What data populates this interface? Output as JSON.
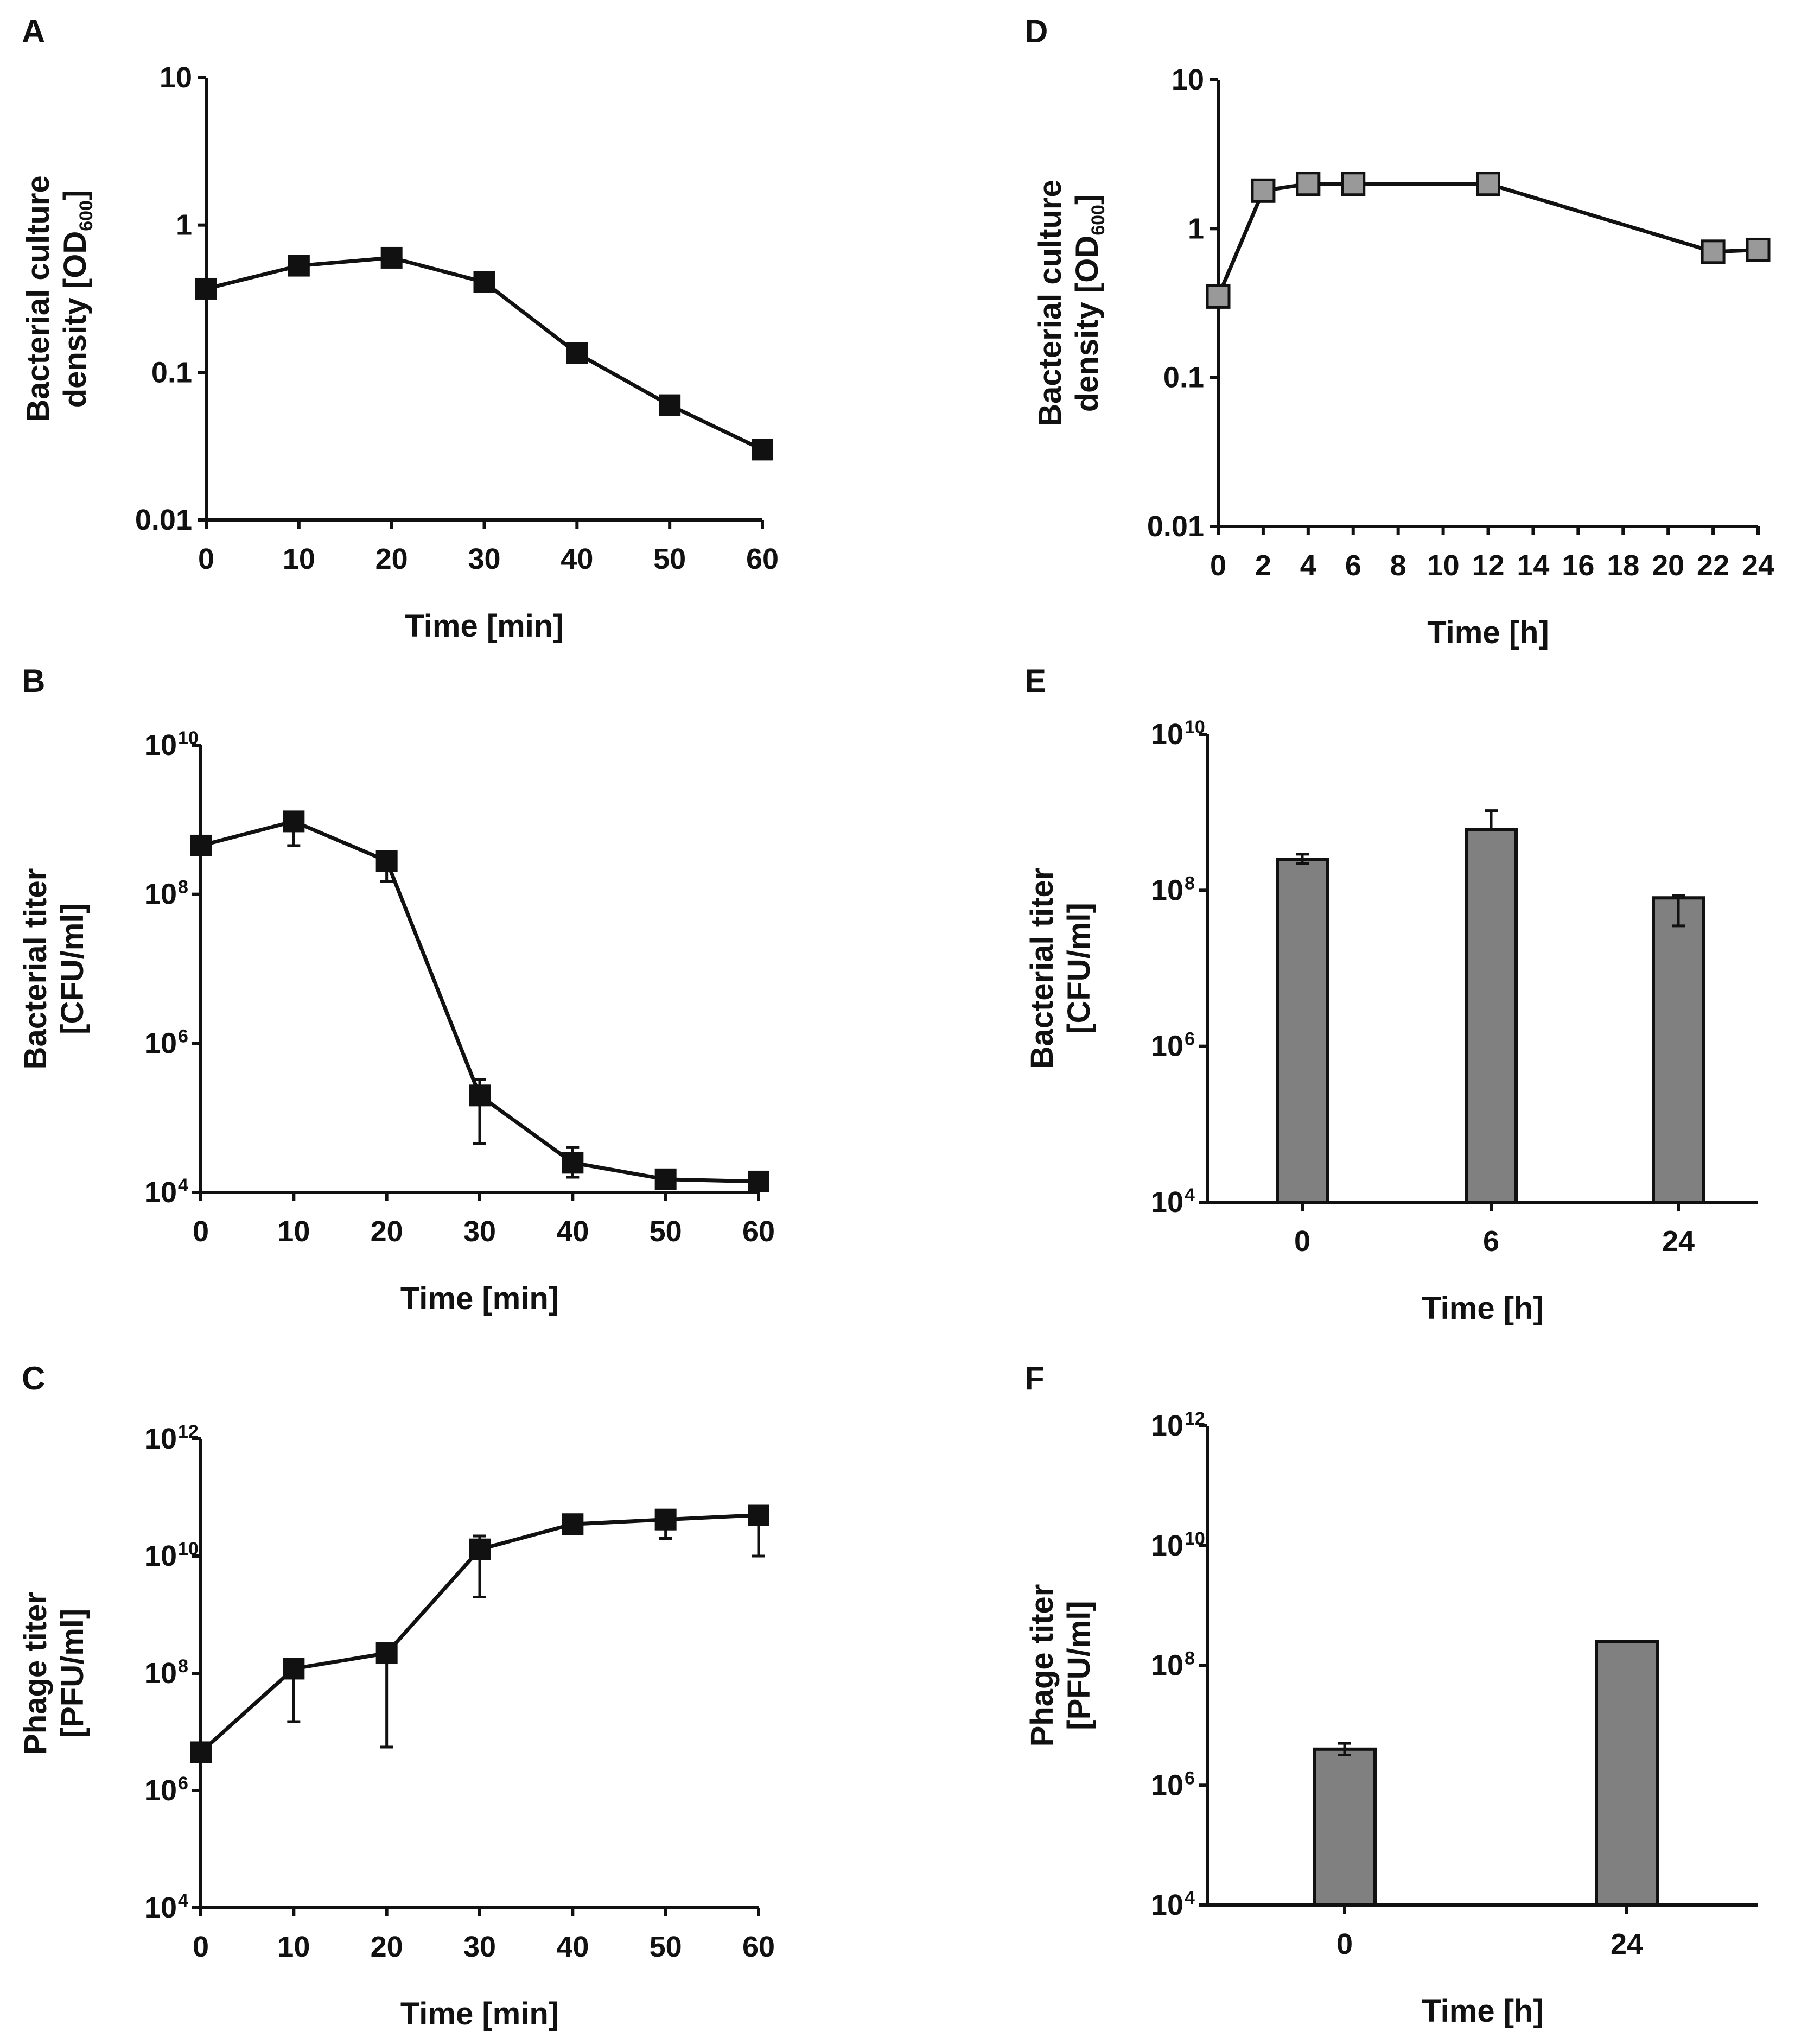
{
  "figure": {
    "panels": [
      "A",
      "B",
      "C",
      "D",
      "E",
      "F"
    ]
  },
  "colors": {
    "dark": "#111111",
    "gray_marker": "#999999",
    "gray_bar": "#808080"
  },
  "chart_data": [
    {
      "id": "A",
      "type": "line",
      "scale": "log",
      "x": [
        0,
        10,
        20,
        30,
        40,
        50,
        60
      ],
      "values": [
        0.37,
        0.53,
        0.6,
        0.41,
        0.135,
        0.06,
        0.03
      ],
      "xlabel": "Time [min]",
      "ylabel_line1": "Bacterial culture",
      "ylabel_line2": "density [OD",
      "ylabel_sub": "600",
      "ylabel_end": "]",
      "xticks": [
        "0",
        "10",
        "20",
        "30",
        "40",
        "50",
        "60"
      ],
      "yticks": [
        "0.01",
        "0.1",
        "1",
        "10"
      ],
      "ylim": [
        0.01,
        10
      ],
      "xlim": [
        0,
        60
      ],
      "marker": "dark-square"
    },
    {
      "id": "B",
      "type": "line",
      "scale": "log",
      "x": [
        0,
        10,
        20,
        30,
        40,
        50,
        60
      ],
      "values": [
        450000000.0,
        950000000.0,
        280000000.0,
        200000.0,
        25000.0,
        15000.0,
        14000.0
      ],
      "err_up": [
        550000000.0,
        1000000000.0,
        320000000.0,
        330000.0,
        40000.0,
        17000.0,
        15000.0
      ],
      "err_down": [
        400000000.0,
        450000000.0,
        150000000.0,
        45000.0,
        16000.0,
        12000.0,
        13000.0
      ],
      "xlabel": "Time [min]",
      "ylabel_line1": "Bacterial titer",
      "ylabel_line2": "[CFU/ml]",
      "xticks": [
        "0",
        "10",
        "20",
        "30",
        "40",
        "50",
        "60"
      ],
      "yticks": [
        {
          "base": "10",
          "exp": "4"
        },
        {
          "base": "10",
          "exp": "6"
        },
        {
          "base": "10",
          "exp": "8"
        },
        {
          "base": "10",
          "exp": "10"
        }
      ],
      "ylim": [
        10000.0,
        10000000000.0
      ],
      "xlim": [
        0,
        60
      ],
      "marker": "dark-square"
    },
    {
      "id": "C",
      "type": "line",
      "scale": "log",
      "x": [
        0,
        10,
        20,
        30,
        40,
        50,
        60
      ],
      "values": [
        4500000.0,
        120000000.0,
        220000000.0,
        13000000000.0,
        35000000000.0,
        42000000000.0,
        50000000000.0
      ],
      "err_up": [
        4600000.0,
        140000000.0,
        240000000.0,
        22000000000.0,
        37000000000.0,
        46000000000.0,
        55000000000.0
      ],
      "err_down": [
        4400000.0,
        15000000.0,
        5500000.0,
        2000000000.0,
        34000000000.0,
        20000000000.0,
        10000000000.0
      ],
      "xlabel": "Time [min]",
      "ylabel_line1": "Phage titer",
      "ylabel_line2": "[PFU/ml]",
      "xticks": [
        "0",
        "10",
        "20",
        "30",
        "40",
        "50",
        "60"
      ],
      "yticks": [
        {
          "base": "10",
          "exp": "4"
        },
        {
          "base": "10",
          "exp": "6"
        },
        {
          "base": "10",
          "exp": "8"
        },
        {
          "base": "10",
          "exp": "10"
        },
        {
          "base": "10",
          "exp": "12"
        }
      ],
      "ylim": [
        10000.0,
        1000000000000.0
      ],
      "xlim": [
        0,
        60
      ],
      "marker": "dark-square"
    },
    {
      "id": "D",
      "type": "line",
      "scale": "log",
      "x": [
        0,
        2,
        4,
        6,
        12,
        22,
        24
      ],
      "values": [
        0.35,
        1.8,
        2.0,
        2.0,
        2.0,
        0.7,
        0.72
      ],
      "xlabel": "Time [h]",
      "ylabel_line1": "Bacterial culture",
      "ylabel_line2": "density [OD",
      "ylabel_sub": "600",
      "ylabel_end": "]",
      "xticks": [
        "0",
        "2",
        "4",
        "6",
        "8",
        "10",
        "12",
        "14",
        "16",
        "18",
        "20",
        "22",
        "24"
      ],
      "yticks": [
        "0.01",
        "0.1",
        "1",
        "10"
      ],
      "ylim": [
        0.01,
        10
      ],
      "xlim": [
        0,
        24
      ],
      "marker": "gray-square"
    },
    {
      "id": "E",
      "type": "bar",
      "scale": "log",
      "categories": [
        "0",
        "6",
        "24"
      ],
      "values": [
        250000000.0,
        600000000.0,
        80000000.0
      ],
      "err_up": [
        290000000.0,
        1050000000.0,
        85000000.0
      ],
      "err_down": [
        220000000.0,
        600000000.0,
        35000000.0
      ],
      "xlabel": "Time [h]",
      "ylabel_line1": "Bacterial titer",
      "ylabel_line2": "[CFU/ml]",
      "yticks": [
        {
          "base": "10",
          "exp": "4"
        },
        {
          "base": "10",
          "exp": "6"
        },
        {
          "base": "10",
          "exp": "8"
        },
        {
          "base": "10",
          "exp": "10"
        }
      ],
      "ylim": [
        10000.0,
        10000000000.0
      ]
    },
    {
      "id": "F",
      "type": "bar",
      "scale": "log",
      "categories": [
        "0",
        "24"
      ],
      "values": [
        4000000.0,
        250000000.0
      ],
      "err_up": [
        5000000.0,
        250000000.0
      ],
      "err_down": [
        3200000.0,
        250000000.0
      ],
      "xlabel": "Time [h]",
      "ylabel_line1": "Phage titer",
      "ylabel_line2": "[PFU/ml]",
      "yticks": [
        {
          "base": "10",
          "exp": "4"
        },
        {
          "base": "10",
          "exp": "6"
        },
        {
          "base": "10",
          "exp": "8"
        },
        {
          "base": "10",
          "exp": "10"
        },
        {
          "base": "10",
          "exp": "12"
        }
      ],
      "ylim": [
        10000.0,
        1000000000000.0
      ]
    }
  ]
}
